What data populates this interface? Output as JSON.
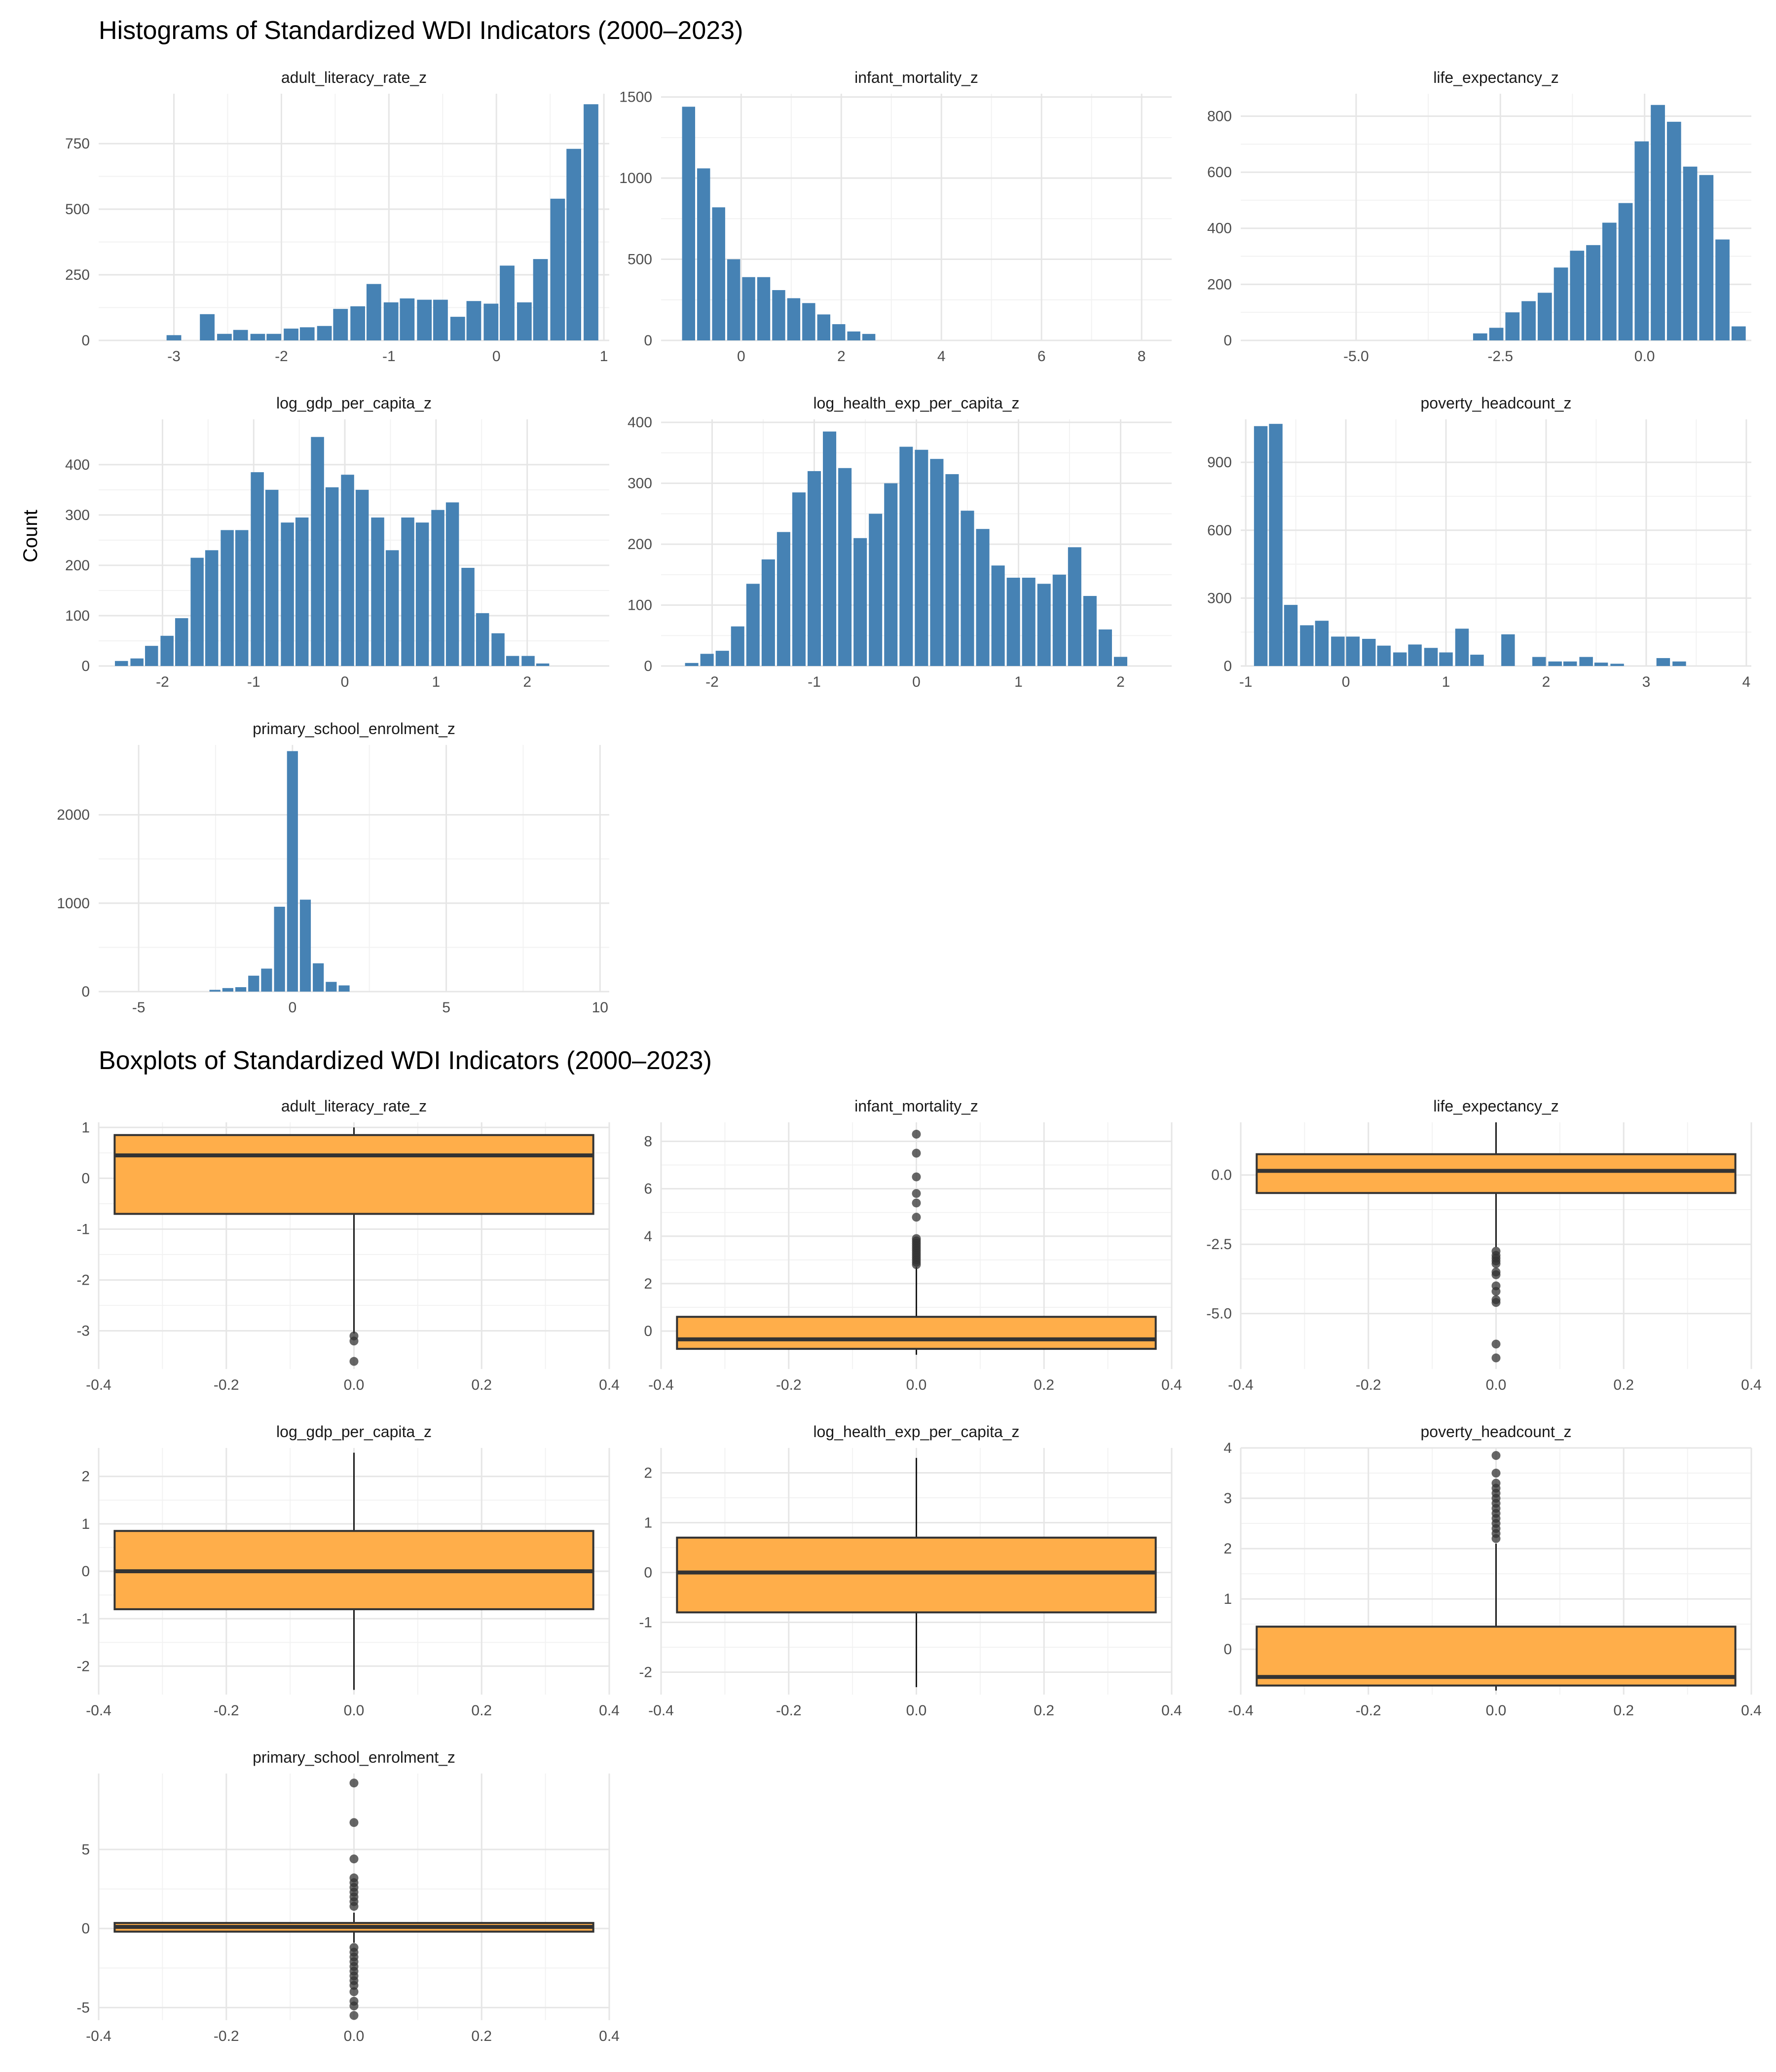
{
  "histograms": {
    "title": "Histograms of Standardized WDI Indicators (2000–2023)",
    "ylabel": "Count",
    "bar_color": "#4682B4"
  },
  "boxplots": {
    "title": "Boxplots of Standardized WDI Indicators (2000–2023)",
    "box_fill": "#FFAE4A",
    "box_stroke": "#333333"
  },
  "chart_data": [
    {
      "type": "bar",
      "panel": "adult_literacy_rate_z",
      "xlim": [
        -3.7,
        1.05
      ],
      "ylim": [
        0,
        940
      ],
      "xticks": [
        -3,
        -2,
        -1,
        0,
        1
      ],
      "yticks": [
        0,
        250,
        500,
        750
      ],
      "bin_width": 0.155,
      "x": [
        -3.0,
        -2.69,
        -2.53,
        -2.38,
        -2.22,
        -2.07,
        -1.91,
        -1.76,
        -1.6,
        -1.45,
        -1.29,
        -1.14,
        -0.98,
        -0.83,
        -0.67,
        -0.52,
        -0.36,
        -0.21,
        -0.05,
        0.1,
        0.26,
        0.41,
        0.57,
        0.72,
        0.88,
        0.96
      ],
      "values": [
        20,
        100,
        25,
        40,
        25,
        25,
        45,
        50,
        55,
        120,
        130,
        215,
        145,
        160,
        155,
        155,
        90,
        150,
        140,
        285,
        145,
        310,
        540,
        730,
        900,
        0
      ]
    },
    {
      "type": "bar",
      "panel": "infant_mortality_z",
      "xlim": [
        -1.6,
        8.6
      ],
      "ylim": [
        0,
        1520
      ],
      "xticks": [
        0,
        2,
        4,
        6,
        8
      ],
      "yticks": [
        0,
        500,
        1000,
        1500
      ],
      "bin_width": 0.3,
      "x": [
        -1.05,
        -0.75,
        -0.45,
        -0.15,
        0.15,
        0.45,
        0.75,
        1.05,
        1.35,
        1.65,
        1.95,
        2.25,
        2.55,
        2.85
      ],
      "values": [
        1440,
        1060,
        820,
        500,
        390,
        390,
        310,
        260,
        230,
        160,
        100,
        55,
        40,
        0
      ]
    },
    {
      "type": "bar",
      "panel": "life_expectancy_z",
      "xlim": [
        -7.0,
        1.85
      ],
      "ylim": [
        0,
        880
      ],
      "xticks": [
        -5.0,
        -2.5,
        0.0
      ],
      "yticks": [
        0,
        200,
        400,
        600,
        800
      ],
      "bin_width": 0.28,
      "x": [
        -2.85,
        -2.57,
        -2.29,
        -2.01,
        -1.73,
        -1.45,
        -1.17,
        -0.89,
        -0.61,
        -0.33,
        -0.05,
        0.23,
        0.51,
        0.79,
        1.07,
        1.35,
        1.63
      ],
      "values": [
        25,
        45,
        100,
        140,
        170,
        260,
        320,
        340,
        420,
        490,
        710,
        840,
        780,
        620,
        590,
        360,
        50
      ]
    },
    {
      "type": "bar",
      "panel": "log_gdp_per_capita_z",
      "xlim": [
        -2.7,
        2.9
      ],
      "ylim": [
        0,
        490
      ],
      "xticks": [
        -2,
        -1,
        0,
        1,
        2
      ],
      "yticks": [
        0,
        100,
        200,
        300,
        400
      ],
      "bin_width": 0.165,
      "x": [
        -2.45,
        -2.28,
        -2.12,
        -1.95,
        -1.79,
        -1.62,
        -1.46,
        -1.29,
        -1.13,
        -0.96,
        -0.8,
        -0.63,
        -0.47,
        -0.3,
        -0.14,
        0.03,
        0.19,
        0.36,
        0.52,
        0.69,
        0.85,
        1.02,
        1.18,
        1.35,
        1.51,
        1.68,
        1.84,
        2.01,
        2.17,
        2.34,
        2.5
      ],
      "values": [
        10,
        15,
        40,
        60,
        95,
        215,
        230,
        270,
        270,
        385,
        350,
        285,
        295,
        455,
        355,
        380,
        350,
        295,
        230,
        295,
        285,
        310,
        325,
        195,
        105,
        65,
        20,
        20,
        5,
        0,
        0
      ]
    },
    {
      "type": "bar",
      "panel": "log_health_exp_per_capita_z",
      "xlim": [
        -2.5,
        2.5
      ],
      "ylim": [
        0,
        405
      ],
      "xticks": [
        -2,
        -1,
        0,
        1,
        2
      ],
      "yticks": [
        0,
        100,
        200,
        300,
        400
      ],
      "bin_width": 0.15,
      "x": [
        -2.2,
        -2.05,
        -1.9,
        -1.75,
        -1.6,
        -1.45,
        -1.3,
        -1.15,
        -1.0,
        -0.85,
        -0.7,
        -0.55,
        -0.4,
        -0.25,
        -0.1,
        0.05,
        0.2,
        0.35,
        0.5,
        0.65,
        0.8,
        0.95,
        1.1,
        1.25,
        1.4,
        1.55,
        1.7,
        1.85,
        2.0,
        2.15
      ],
      "values": [
        5,
        20,
        25,
        65,
        135,
        175,
        220,
        285,
        320,
        385,
        325,
        210,
        250,
        300,
        360,
        355,
        340,
        315,
        255,
        225,
        165,
        145,
        145,
        135,
        150,
        195,
        115,
        60,
        15,
        0
      ]
    },
    {
      "type": "bar",
      "panel": "poverty_headcount_z",
      "xlim": [
        -1.05,
        4.05
      ],
      "ylim": [
        0,
        1090
      ],
      "xticks": [
        -1,
        0,
        1,
        2,
        3,
        4
      ],
      "yticks": [
        0,
        300,
        600,
        900
      ],
      "bin_width": 0.155,
      "x": [
        -0.85,
        -0.7,
        -0.55,
        -0.39,
        -0.24,
        -0.08,
        0.07,
        0.23,
        0.38,
        0.54,
        0.69,
        0.85,
        1.0,
        1.16,
        1.31,
        1.47,
        1.62,
        1.78,
        1.93,
        2.09,
        2.24,
        2.4,
        2.55,
        2.71,
        2.86,
        3.02,
        3.17,
        3.33
      ],
      "values": [
        1060,
        1070,
        270,
        180,
        200,
        130,
        130,
        120,
        90,
        60,
        95,
        80,
        60,
        165,
        50,
        0,
        140,
        0,
        40,
        20,
        20,
        40,
        15,
        10,
        0,
        0,
        35,
        20
      ]
    },
    {
      "type": "bar",
      "panel": "primary_school_enrolment_z",
      "xlim": [
        -6.3,
        10.3
      ],
      "ylim": [
        0,
        2790
      ],
      "xticks": [
        -5,
        0,
        5,
        10
      ],
      "yticks": [
        0,
        1000,
        2000
      ],
      "bin_width": 0.42,
      "x": [
        -2.52,
        -2.1,
        -1.68,
        -1.26,
        -0.84,
        -0.42,
        0.0,
        0.42,
        0.84,
        1.26,
        1.68
      ],
      "values": [
        20,
        40,
        50,
        180,
        260,
        960,
        2720,
        1040,
        320,
        110,
        70
      ]
    },
    {
      "type": "box",
      "panel": "adult_literacy_rate_z",
      "xlim": [
        -0.4,
        0.4
      ],
      "ylim": [
        -3.75,
        1.1
      ],
      "xticks": [
        -0.4,
        -0.2,
        0.0,
        0.2,
        0.4
      ],
      "yticks": [
        -3,
        -2,
        -1,
        0,
        1
      ],
      "q1": -0.7,
      "median": 0.45,
      "q3": 0.85,
      "whisker_low": -3.05,
      "whisker_high": 1.0,
      "outliers": [
        -3.1,
        -3.2,
        -3.6
      ]
    },
    {
      "type": "box",
      "panel": "infant_mortality_z",
      "xlim": [
        -0.4,
        0.4
      ],
      "ylim": [
        -1.6,
        8.8
      ],
      "xticks": [
        -0.4,
        -0.2,
        0.0,
        0.2,
        0.4
      ],
      "yticks": [
        0,
        2,
        4,
        6,
        8
      ],
      "q1": -0.75,
      "median": -0.35,
      "q3": 0.6,
      "whisker_low": -1.0,
      "whisker_high": 2.7,
      "outliers": [
        2.8,
        2.9,
        3.0,
        3.1,
        3.2,
        3.3,
        3.4,
        3.5,
        3.6,
        3.7,
        3.8,
        3.9,
        4.8,
        5.4,
        5.8,
        6.5,
        7.5,
        8.3
      ]
    },
    {
      "type": "box",
      "panel": "life_expectancy_z",
      "xlim": [
        -0.4,
        0.4
      ],
      "ylim": [
        -7.0,
        1.9
      ],
      "xticks": [
        -0.4,
        -0.2,
        0.0,
        0.2,
        0.4
      ],
      "yticks": [
        -5.0,
        -2.5,
        0.0
      ],
      "q1": -0.65,
      "median": 0.15,
      "q3": 0.75,
      "whisker_low": -2.6,
      "whisker_high": 1.9,
      "outliers": [
        -2.75,
        -2.9,
        -3.0,
        -3.1,
        -3.2,
        -3.5,
        -3.6,
        -4.0,
        -4.2,
        -4.5,
        -4.6,
        -6.1,
        -6.6
      ]
    },
    {
      "type": "box",
      "panel": "log_gdp_per_capita_z",
      "xlim": [
        -0.4,
        0.4
      ],
      "ylim": [
        -2.6,
        2.6
      ],
      "xticks": [
        -0.4,
        -0.2,
        0.0,
        0.2,
        0.4
      ],
      "yticks": [
        -2,
        -1,
        0,
        1,
        2
      ],
      "q1": -0.8,
      "median": 0.0,
      "q3": 0.85,
      "whisker_low": -2.5,
      "whisker_high": 2.5,
      "outliers": []
    },
    {
      "type": "box",
      "panel": "log_health_exp_per_capita_z",
      "xlim": [
        -0.4,
        0.4
      ],
      "ylim": [
        -2.45,
        2.5
      ],
      "xticks": [
        -0.4,
        -0.2,
        0.0,
        0.2,
        0.4
      ],
      "yticks": [
        -2,
        -1,
        0,
        1,
        2
      ],
      "q1": -0.8,
      "median": 0.0,
      "q3": 0.7,
      "whisker_low": -2.3,
      "whisker_high": 2.3,
      "outliers": []
    },
    {
      "type": "box",
      "panel": "poverty_headcount_z",
      "xlim": [
        -0.4,
        0.4
      ],
      "ylim": [
        -0.9,
        4.0
      ],
      "xticks": [
        -0.4,
        -0.2,
        0.0,
        0.2,
        0.4
      ],
      "yticks": [
        0,
        1,
        2,
        3,
        4
      ],
      "q1": -0.72,
      "median": -0.55,
      "q3": 0.45,
      "whisker_low": -0.82,
      "whisker_high": 2.1,
      "outliers": [
        2.2,
        2.3,
        2.4,
        2.5,
        2.6,
        2.7,
        2.8,
        2.9,
        3.0,
        3.1,
        3.2,
        3.3,
        3.5,
        3.85
      ]
    },
    {
      "type": "box",
      "panel": "primary_school_enrolment_z",
      "xlim": [
        -0.4,
        0.4
      ],
      "ylim": [
        -5.8,
        9.8
      ],
      "xticks": [
        -0.4,
        -0.2,
        0.0,
        0.2,
        0.4
      ],
      "yticks": [
        -5,
        0,
        5
      ],
      "q1": -0.2,
      "median": 0.1,
      "q3": 0.35,
      "whisker_low": -0.9,
      "whisker_high": 1.0,
      "outliers": [
        -1.2,
        -1.5,
        -1.8,
        -2.1,
        -2.4,
        -2.7,
        -3.0,
        -3.3,
        -3.6,
        -4.0,
        -4.6,
        -4.9,
        -5.5,
        1.4,
        1.7,
        2.0,
        2.3,
        2.6,
        2.9,
        3.2,
        4.4,
        6.7,
        9.2
      ]
    }
  ]
}
